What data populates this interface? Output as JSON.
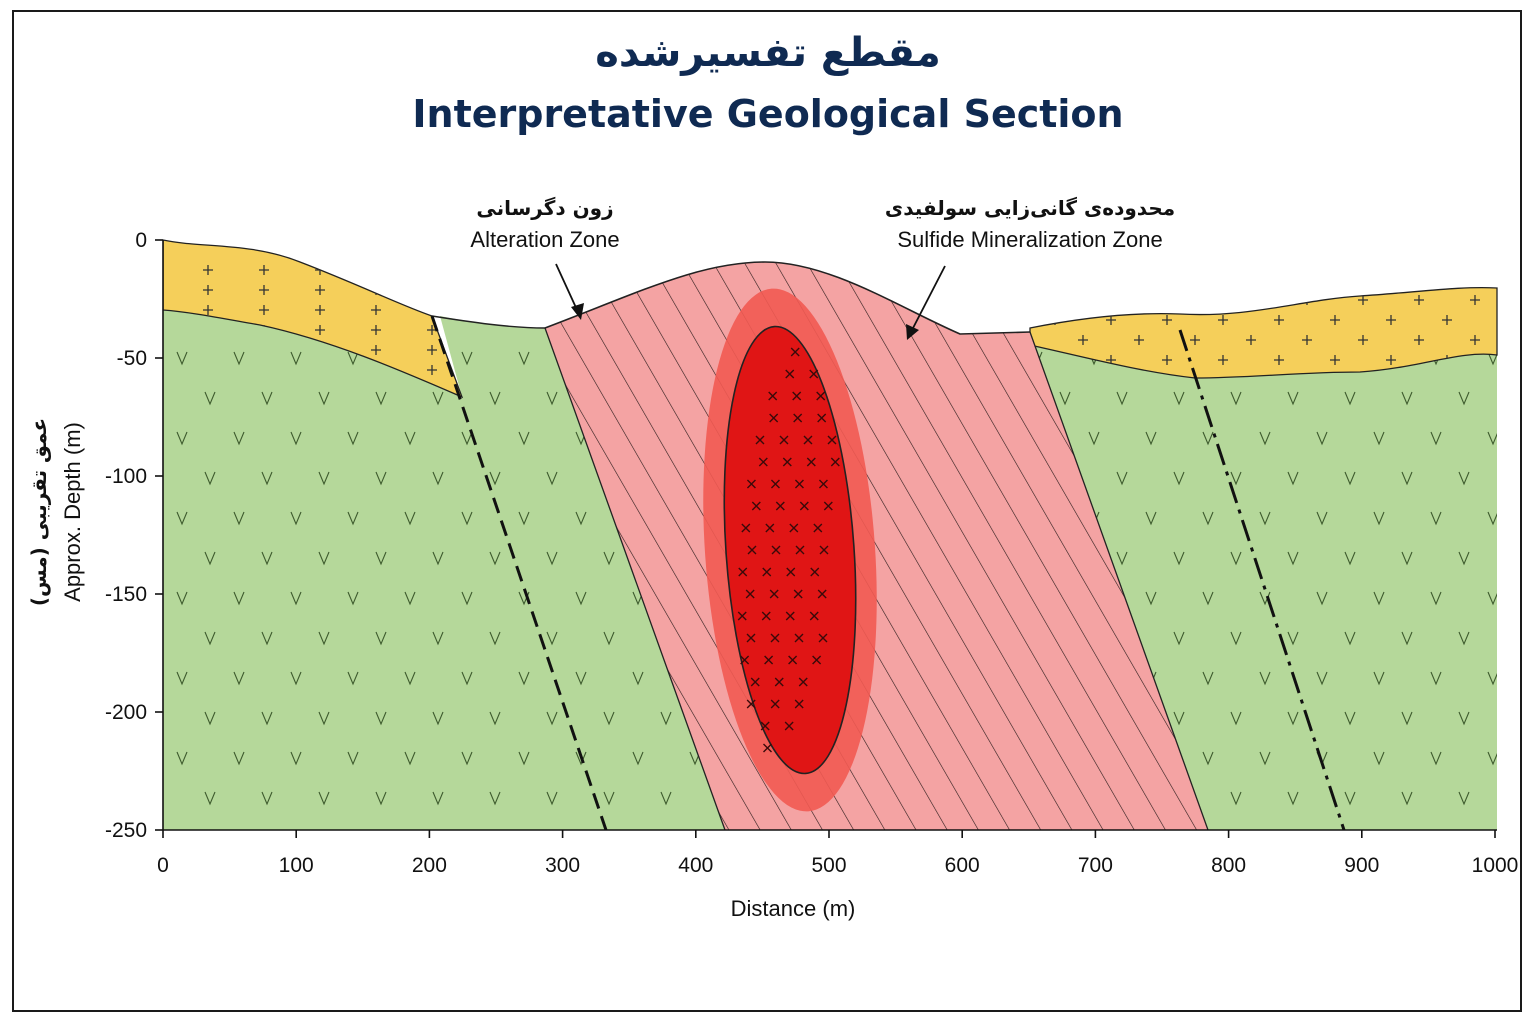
{
  "title_fa": "مقطع تفسیرشده",
  "title_en": "Interpretative Geological Section",
  "axes": {
    "x_label": "Distance (m)",
    "y_label_fa": "عمق تقریبی (مس)",
    "y_label_en": "Approx. Depth (m)",
    "x_ticks": [
      "0",
      "100",
      "200",
      "300",
      "400",
      "500",
      "600",
      "700",
      "800",
      "900",
      "1000"
    ],
    "y_ticks": [
      "0",
      "-50",
      "-100",
      "-150",
      "-200",
      "-250"
    ]
  },
  "annotations": {
    "alteration_fa": "زون دگرسانی",
    "alteration_en": "Alteration Zone",
    "sulfide_fa": "محدوده‌ی گانی‌زایی سولفیدی",
    "sulfide_en": "Sulfide Mineralization Zone"
  },
  "colors": {
    "title": "#0f2a52",
    "overburden": "#f5cf5a",
    "volcanic": "#b5d89a",
    "alteration": "#f4a3a3",
    "mineral_halo": "#f25a52",
    "mineral_core": "#e01515"
  },
  "diagram_data": {
    "x_range": [
      0,
      1000
    ],
    "y_range": [
      -250,
      0
    ],
    "units": "m",
    "layers": [
      "overburden",
      "volcanic host rock",
      "alteration zone",
      "sulfide mineralization zone"
    ],
    "faults": [
      {
        "style": "dashed",
        "surface_x": 205,
        "base_x": 333
      },
      {
        "style": "dash-dot",
        "surface_x": 768,
        "base_x": 888
      }
    ]
  }
}
